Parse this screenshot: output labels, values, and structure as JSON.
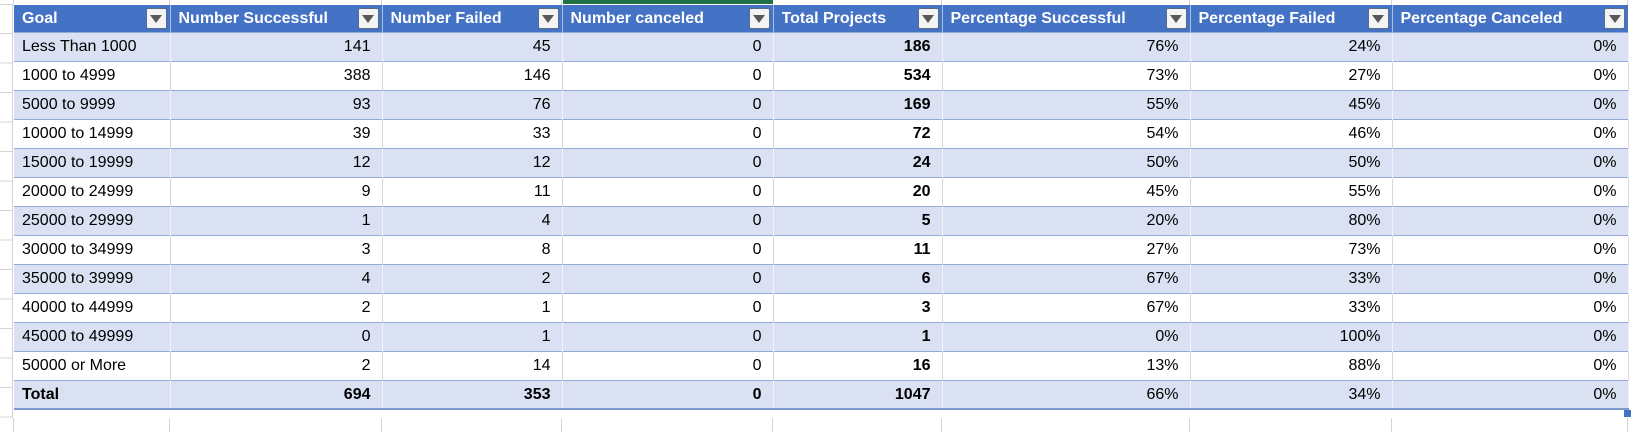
{
  "sheet": {
    "selected_column_indicator": "Number canceled",
    "colors": {
      "header_bg": "#4472C4",
      "header_text": "#FFFFFF",
      "banded_row": "#D9E1F2",
      "white_row": "#FFFFFF",
      "row_border": "#93A9D6",
      "total_row_border": "#7F9CCF",
      "gridline": "#D4D4D4",
      "selection_green": "#1F7145",
      "resize_handle": "#4472C4",
      "filter_button_bg": "#F4F4F4",
      "filter_button_border": "#5A6B8C",
      "filter_arrow": "#595959"
    }
  },
  "icons": {
    "filter_dropdown": "triangle-down"
  },
  "table": {
    "columns": [
      {
        "key": "goal",
        "label": "Goal",
        "align": "left"
      },
      {
        "key": "number-successful",
        "label": "Number Successful",
        "align": "right"
      },
      {
        "key": "number-failed",
        "label": "Number Failed",
        "align": "right"
      },
      {
        "key": "number-canceled",
        "label": "Number canceled",
        "align": "right"
      },
      {
        "key": "total-projects",
        "label": "Total Projects",
        "align": "right",
        "bold": true
      },
      {
        "key": "percentage-successful",
        "label": "Percentage Successful",
        "align": "right"
      },
      {
        "key": "percentage-failed",
        "label": "Percentage Failed",
        "align": "right"
      },
      {
        "key": "percentage-canceled",
        "label": "Percentage Canceled",
        "align": "right"
      }
    ],
    "rows": [
      {
        "cells": [
          "Less Than 1000",
          "141",
          "45",
          "0",
          "186",
          "76%",
          "24%",
          "0%"
        ]
      },
      {
        "cells": [
          "1000 to 4999",
          "388",
          "146",
          "0",
          "534",
          "73%",
          "27%",
          "0%"
        ]
      },
      {
        "cells": [
          "5000 to 9999",
          "93",
          "76",
          "0",
          "169",
          "55%",
          "45%",
          "0%"
        ]
      },
      {
        "cells": [
          "10000 to 14999",
          "39",
          "33",
          "0",
          "72",
          "54%",
          "46%",
          "0%"
        ]
      },
      {
        "cells": [
          "15000 to 19999",
          "12",
          "12",
          "0",
          "24",
          "50%",
          "50%",
          "0%"
        ]
      },
      {
        "cells": [
          "20000 to 24999",
          "9",
          "11",
          "0",
          "20",
          "45%",
          "55%",
          "0%"
        ]
      },
      {
        "cells": [
          "25000 to 29999",
          "1",
          "4",
          "0",
          "5",
          "20%",
          "80%",
          "0%"
        ]
      },
      {
        "cells": [
          "30000 to 34999",
          "3",
          "8",
          "0",
          "11",
          "27%",
          "73%",
          "0%"
        ]
      },
      {
        "cells": [
          "35000 to 39999",
          "4",
          "2",
          "0",
          "6",
          "67%",
          "33%",
          "0%"
        ]
      },
      {
        "cells": [
          "40000 to 44999",
          "2",
          "1",
          "0",
          "3",
          "67%",
          "33%",
          "0%"
        ]
      },
      {
        "cells": [
          "45000 to 49999",
          "0",
          "1",
          "0",
          "1",
          "0%",
          "100%",
          "0%"
        ]
      },
      {
        "cells": [
          "50000 or More",
          "2",
          "14",
          "0",
          "16",
          "13%",
          "88%",
          "0%"
        ]
      }
    ],
    "total_row": {
      "cells": [
        "Total",
        "694",
        "353",
        "0",
        "1047",
        "66%",
        "34%",
        "0%"
      ]
    }
  }
}
